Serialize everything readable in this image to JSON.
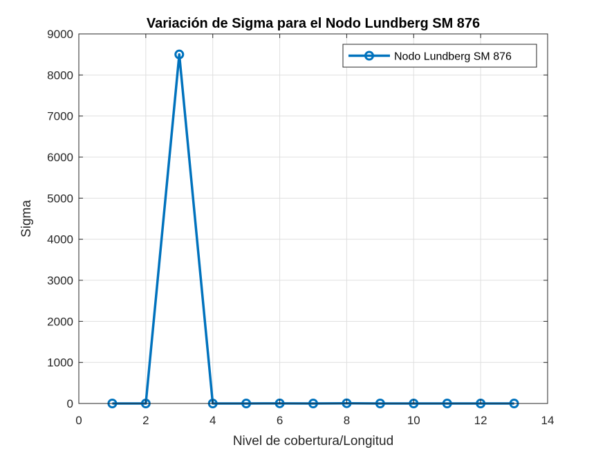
{
  "chart_data": {
    "type": "line",
    "title": "Variación de Sigma para el Nodo Lundberg SM 876",
    "xlabel": "Nivel de cobertura/Longitud",
    "ylabel": "Sigma",
    "xlim": [
      0,
      14
    ],
    "ylim": [
      0,
      9000
    ],
    "xticks": [
      0,
      2,
      4,
      6,
      8,
      10,
      12,
      14
    ],
    "yticks": [
      0,
      1000,
      2000,
      3000,
      4000,
      5000,
      6000,
      7000,
      8000,
      9000
    ],
    "grid": true,
    "legend_position": "top-right",
    "series": [
      {
        "name": "Nodo Lundberg SM 876",
        "color": "#0072BD",
        "marker": "circle",
        "x": [
          1,
          2,
          3,
          4,
          5,
          6,
          7,
          8,
          9,
          10,
          11,
          12,
          13
        ],
        "y": [
          0,
          0,
          8500,
          0,
          0,
          3,
          0,
          5,
          0,
          0,
          0,
          0,
          0
        ]
      }
    ]
  }
}
